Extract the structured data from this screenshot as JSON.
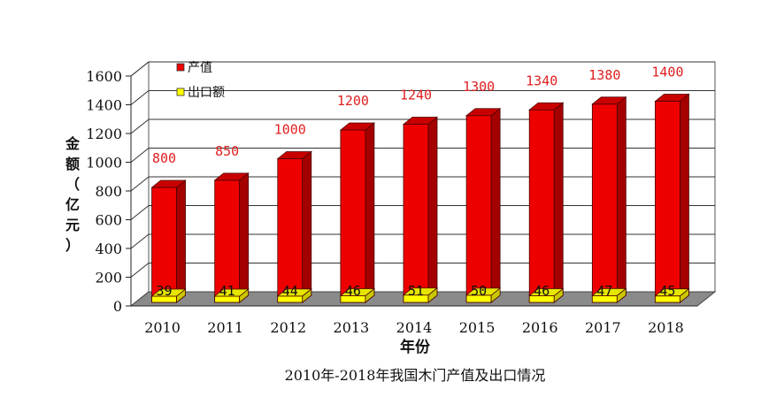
{
  "chart_data": {
    "type": "bar",
    "title": "2010年-2018年我国木门产值及出口情况",
    "xlabel": "年份",
    "ylabel_chars": [
      "金",
      "额",
      "（",
      "亿",
      "元",
      "）"
    ],
    "ylim": [
      0,
      1600
    ],
    "yticks": [
      0,
      200,
      400,
      600,
      800,
      1000,
      1200,
      1400,
      1600
    ],
    "categories": [
      "2010",
      "2011",
      "2012",
      "2013",
      "2014",
      "2015",
      "2016",
      "2017",
      "2018"
    ],
    "series": [
      {
        "name": "产值",
        "values": [
          800,
          850,
          1000,
          1200,
          1240,
          1300,
          1340,
          1380,
          1400
        ],
        "color": "#ee0000"
      },
      {
        "name": "出口额",
        "values": [
          39,
          41,
          44,
          46,
          51,
          50,
          46,
          47,
          45
        ],
        "color": "#ffff00"
      }
    ],
    "legend_position": "top-left",
    "grid": true
  }
}
